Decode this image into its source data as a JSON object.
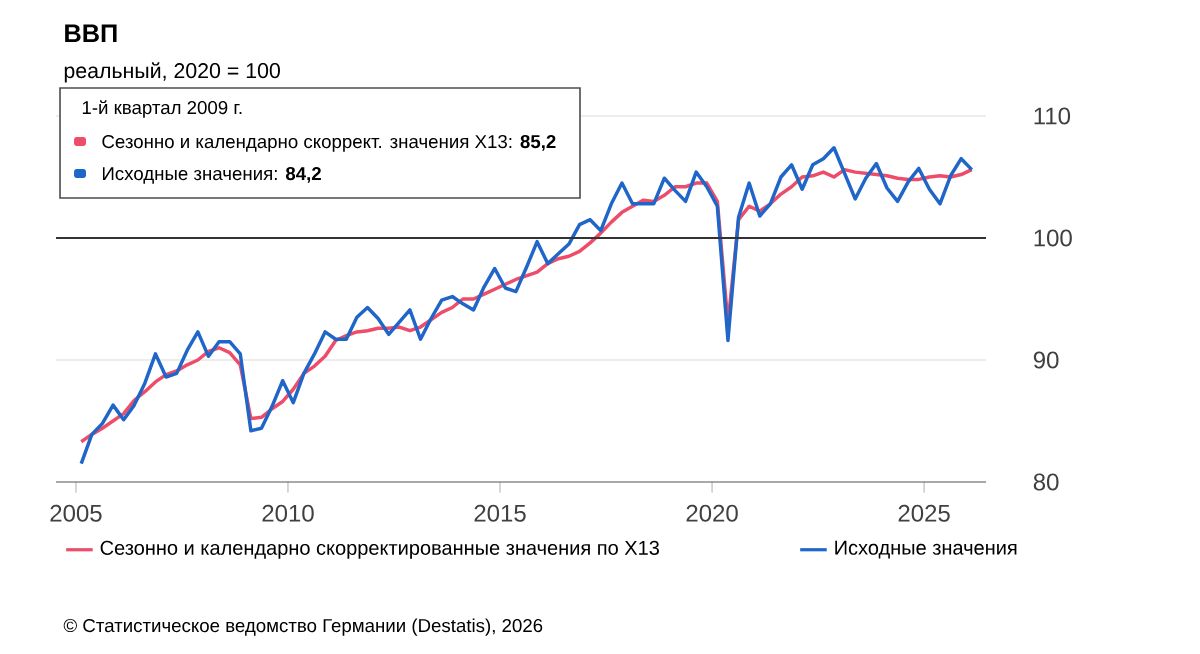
{
  "chart_data": {
    "type": "line",
    "title": "ВВП",
    "subtitle": "реальный, 2020 = 100",
    "x": [
      2005.125,
      2005.375,
      2005.625,
      2005.875,
      2006.125,
      2006.375,
      2006.625,
      2006.875,
      2007.125,
      2007.375,
      2007.625,
      2007.875,
      2008.125,
      2008.375,
      2008.625,
      2008.875,
      2009.125,
      2009.375,
      2009.625,
      2009.875,
      2010.125,
      2010.375,
      2010.625,
      2010.875,
      2011.125,
      2011.375,
      2011.625,
      2011.875,
      2012.125,
      2012.375,
      2012.625,
      2012.875,
      2013.125,
      2013.375,
      2013.625,
      2013.875,
      2014.125,
      2014.375,
      2014.625,
      2014.875,
      2015.125,
      2015.375,
      2015.625,
      2015.875,
      2016.125,
      2016.375,
      2016.625,
      2016.875,
      2017.125,
      2017.375,
      2017.625,
      2017.875,
      2018.125,
      2018.375,
      2018.625,
      2018.875,
      2019.125,
      2019.375,
      2019.625,
      2019.875,
      2020.125,
      2020.375,
      2020.625,
      2020.875,
      2021.125,
      2021.375,
      2021.625,
      2021.875,
      2022.125,
      2022.375,
      2022.625,
      2022.875,
      2023.125,
      2023.375,
      2023.625,
      2023.875,
      2024.125,
      2024.375,
      2024.625,
      2024.875,
      2025.125,
      2025.375,
      2025.625,
      2025.875,
      2026.125
    ],
    "series": [
      {
        "name": "Сезонно и календарно скорректированные значения по X13",
        "color": "#ee4d6a",
        "values": [
          83.3,
          83.9,
          84.4,
          85.0,
          85.6,
          86.7,
          87.4,
          88.2,
          88.8,
          89.1,
          89.6,
          90.0,
          90.7,
          91.0,
          90.6,
          89.6,
          85.2,
          85.3,
          86.0,
          86.6,
          87.6,
          88.9,
          89.5,
          90.3,
          91.6,
          92.0,
          92.3,
          92.4,
          92.6,
          92.6,
          92.7,
          92.4,
          92.7,
          93.3,
          93.9,
          94.3,
          95.0,
          95.0,
          95.4,
          95.8,
          96.2,
          96.6,
          96.9,
          97.2,
          97.9,
          98.3,
          98.5,
          98.9,
          99.6,
          100.4,
          101.3,
          102.1,
          102.6,
          103.1,
          103.0,
          103.5,
          104.2,
          104.2,
          104.5,
          104.5,
          103.0,
          93.0,
          101.5,
          102.6,
          102.2,
          102.8,
          103.6,
          104.2,
          105.0,
          105.1,
          105.4,
          105.0,
          105.6,
          105.4,
          105.3,
          105.2,
          105.1,
          104.9,
          104.8,
          104.8,
          105.0,
          105.1,
          105.0,
          105.2,
          105.6
        ]
      },
      {
        "name": "Исходные значения",
        "color": "#1f66c8",
        "values": [
          81.5,
          83.9,
          84.8,
          86.3,
          85.1,
          86.3,
          88.1,
          90.5,
          88.6,
          88.9,
          90.8,
          92.3,
          90.3,
          91.5,
          91.5,
          90.5,
          84.2,
          84.4,
          86.2,
          88.3,
          86.5,
          88.9,
          90.5,
          92.3,
          91.7,
          91.7,
          93.5,
          94.3,
          93.4,
          92.1,
          93.1,
          94.1,
          91.7,
          93.4,
          94.9,
          95.2,
          94.6,
          94.1,
          96.0,
          97.5,
          95.9,
          95.6,
          97.6,
          99.7,
          97.9,
          98.7,
          99.5,
          101.1,
          101.5,
          100.6,
          102.8,
          104.5,
          102.8,
          102.8,
          102.8,
          104.9,
          103.9,
          103.0,
          105.4,
          104.2,
          102.6,
          91.6,
          101.7,
          104.5,
          101.8,
          102.8,
          105.0,
          106.0,
          104.0,
          106.0,
          106.5,
          107.4,
          105.3,
          103.2,
          104.9,
          106.1,
          104.1,
          103.0,
          104.6,
          105.7,
          104.0,
          102.8,
          105.1,
          106.5,
          105.6
        ]
      }
    ],
    "xlim": [
      2004.53,
      2026.46
    ],
    "ylim": [
      80,
      110
    ],
    "xticks": [
      2005,
      2010,
      2015,
      2020,
      2025
    ],
    "yticks": [
      80,
      90,
      100,
      110
    ],
    "ref_lines": [
      {
        "axis": "y",
        "value": 100,
        "color": "#333333"
      }
    ],
    "grid": "y",
    "legend": "bottom",
    "marker": "none",
    "line_style": "solid",
    "annotations": [
      "1-й квартал 2009 г.",
      "Сезонно и календарно скоррект. значения X13: **85,2**",
      "Исходные значения: **84,2**",
      "© Статистическое ведомство Германии (Destatis), 2026"
    ]
  }
}
